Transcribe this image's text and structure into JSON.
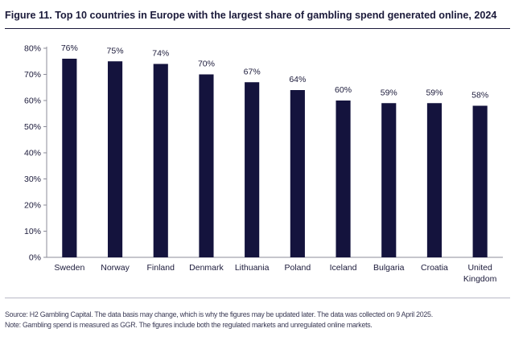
{
  "figure": {
    "title": "Figure 11. Top 10 countries in Europe with the largest share of gambling spend generated online, 2024",
    "source": "Source: H2 Gambling Capital. The data basis may change, which is why the figures may be updated later. The data was collected on 9 April 2025.",
    "note": "Note: Gambling spend is measured as GGR. The figures include both the regulated markets and unregulated online markets."
  },
  "colors": {
    "bar": "#14133d",
    "text": "#1b1a3a",
    "axis": "#8c8c99"
  },
  "chart_data": {
    "type": "bar",
    "title": "Figure 11. Top 10 countries in Europe with the largest share of gambling spend generated online, 2024",
    "xlabel": "",
    "ylabel": "",
    "categories": [
      [
        "Sweden"
      ],
      [
        "Norway"
      ],
      [
        "Finland"
      ],
      [
        "Denmark"
      ],
      [
        "Lithuania"
      ],
      [
        "Poland"
      ],
      [
        "Iceland"
      ],
      [
        "Bulgaria"
      ],
      [
        "Croatia"
      ],
      [
        "United",
        "Kingdom"
      ]
    ],
    "values": [
      76,
      75,
      74,
      70,
      67,
      64,
      60,
      59,
      59,
      58
    ],
    "value_labels": [
      "76%",
      "75%",
      "74%",
      "70%",
      "67%",
      "64%",
      "60%",
      "59%",
      "59%",
      "58%"
    ],
    "ylim": [
      0,
      80
    ],
    "yticks": [
      0,
      10,
      20,
      30,
      40,
      50,
      60,
      70,
      80
    ],
    "ytick_labels": [
      "0%",
      "10%",
      "20%",
      "30%",
      "40%",
      "50%",
      "60%",
      "70%",
      "80%"
    ],
    "grid": false,
    "legend": "none"
  }
}
